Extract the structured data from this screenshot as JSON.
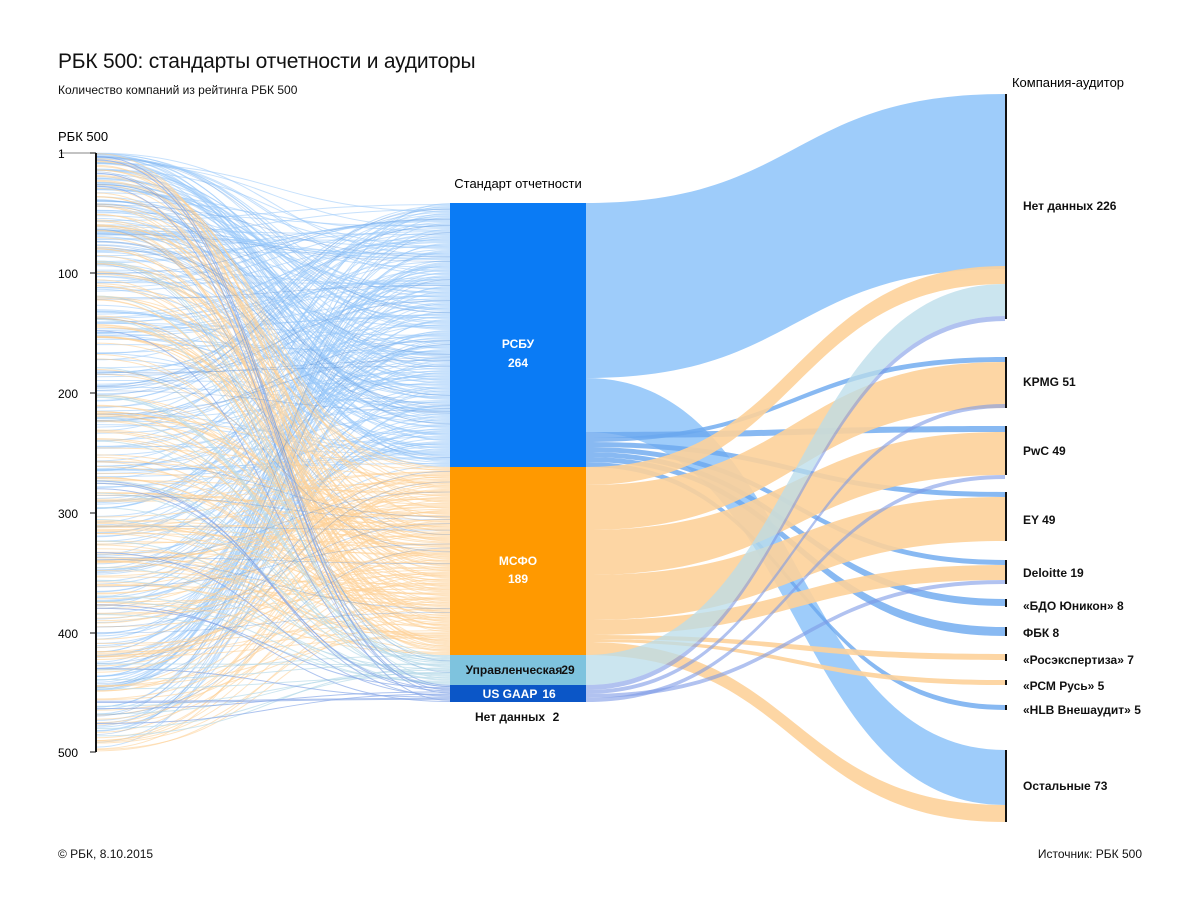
{
  "title": "РБК 500: стандарты отчетности и аудиторы",
  "subtitle": "Количество компаний из рейтинга РБК 500",
  "left_axis": {
    "title": "РБК 500",
    "ticks": [
      "1",
      "100",
      "200",
      "300",
      "400",
      "500"
    ]
  },
  "middle_title": "Стандарт отчетности",
  "right_title": "Компания-аудитор",
  "footer": {
    "copyright": "© РБК, 8.10.2015",
    "source": "Источник: РБК 500"
  },
  "colors": {
    "rsbu": "#0a7bf5",
    "rsbu_flow": "#99c9fa",
    "msfo": "#ff9900",
    "msfo_flow": "#fdd29a",
    "managerial": "#7ec3de",
    "managerial_flow": "#b9dce9",
    "usgaap": "#0b56c7",
    "usgaap_flow": "#8aa9e8"
  },
  "chart_data": {
    "type": "sankey",
    "standards": [
      {
        "name": "РСБУ",
        "value": "264"
      },
      {
        "name": "МСФО",
        "value": "189"
      },
      {
        "name": "Управленческая",
        "value": "29"
      },
      {
        "name": "US GAAP",
        "value": "16"
      },
      {
        "name": "Нет данных",
        "value": "2"
      }
    ],
    "auditors": [
      {
        "name": "Нет данных",
        "value": "226"
      },
      {
        "name": "KPMG",
        "value": "51"
      },
      {
        "name": "PwC",
        "value": "49"
      },
      {
        "name": "EY",
        "value": "49"
      },
      {
        "name": "Deloitte",
        "value": "19"
      },
      {
        "name": "«БДО Юникон»",
        "value": "8"
      },
      {
        "name": "ФБК",
        "value": "8"
      },
      {
        "name": "«Росэкспертиза»",
        "value": "7"
      },
      {
        "name": "«РСМ Русь»",
        "value": "5"
      },
      {
        "name": "«HLB Внешаудит»",
        "value": "5"
      },
      {
        "name": "Остальные",
        "value": "73"
      }
    ]
  }
}
